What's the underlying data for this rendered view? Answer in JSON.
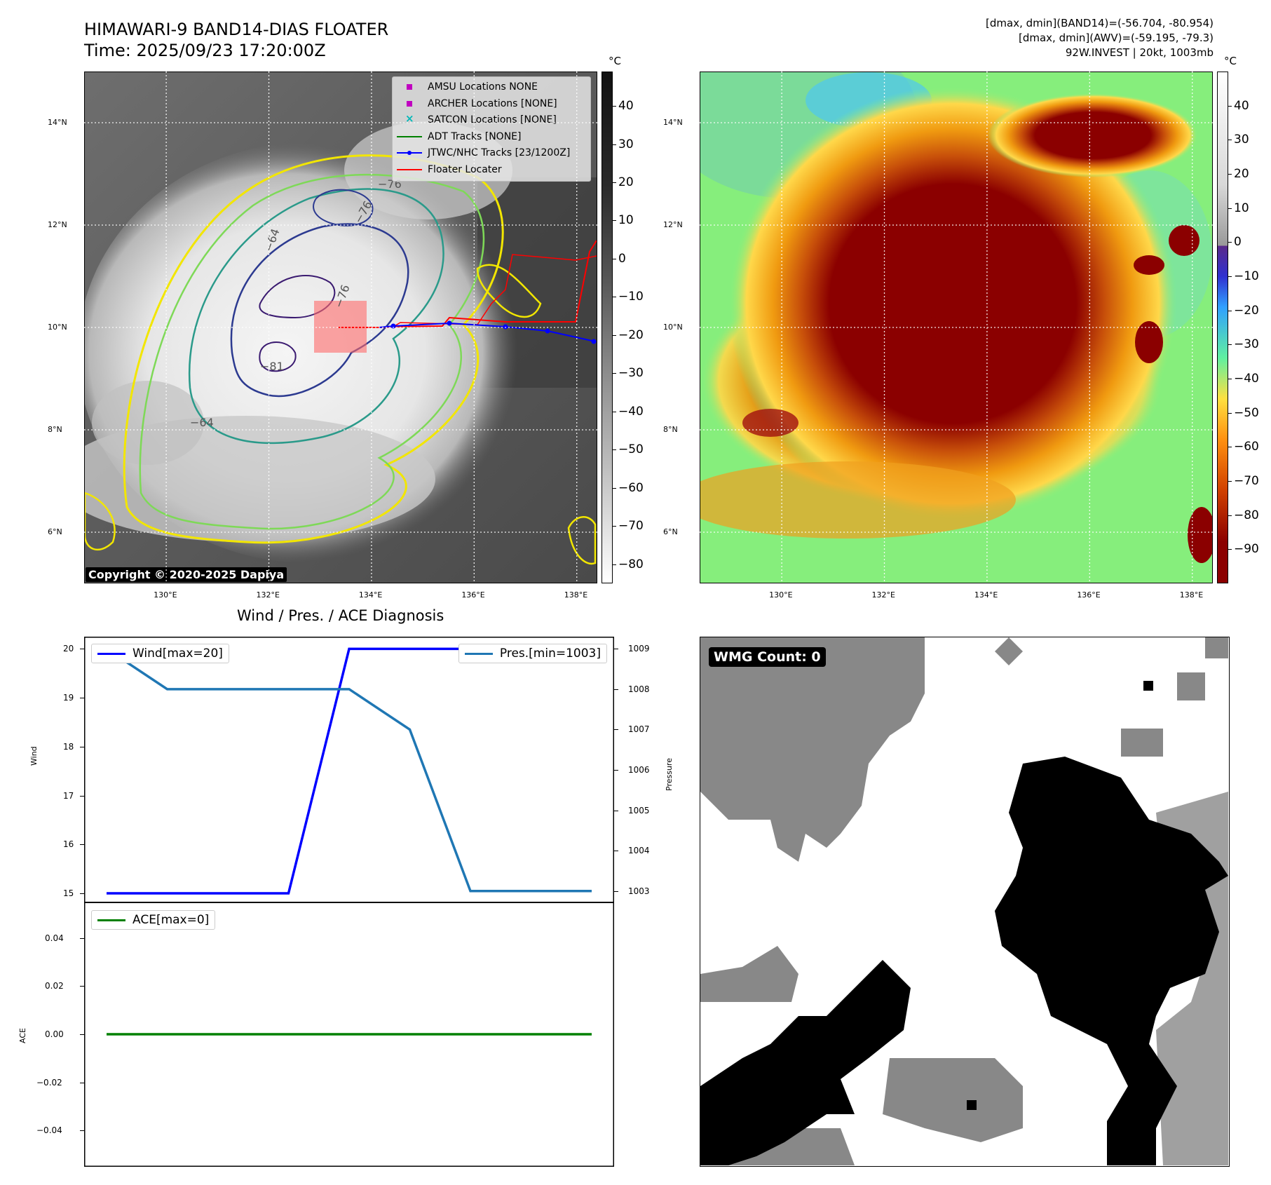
{
  "header": {
    "title_line1": "HIMAWARI-9 BAND14-DIAS FLOATER",
    "title_line2": "Time: 2025/09/23 17:20:00Z",
    "info_line1": "[dmax, dmin](BAND14)=(-56.704, -80.954)",
    "info_line2": "[dmax, dmin](AWV)=(-59.195, -79.3)",
    "info_line3": "92W.INVEST | 20kt, 1003mb"
  },
  "map_axes": {
    "lat_labels": [
      "14°N",
      "12°N",
      "10°N",
      "8°N",
      "6°N"
    ],
    "lat_values": [
      14,
      12,
      10,
      8,
      6
    ],
    "lon_labels": [
      "130°E",
      "132°E",
      "134°E",
      "136°E",
      "138°E"
    ],
    "lon_values": [
      130,
      132,
      134,
      136,
      138
    ],
    "lat_range": [
      5,
      15
    ],
    "lon_range": [
      128.4,
      138.4
    ]
  },
  "left_map": {
    "copyright": "Copyright © 2020-2025 Dapiya",
    "contour_labels": [
      "−76",
      "−76",
      "−64",
      "−81",
      "−76",
      "−64"
    ],
    "legend": [
      {
        "label": "AMSU Locations NONE",
        "color": "#c000c0",
        "marker": "square"
      },
      {
        "label": "ARCHER Locations [NONE]",
        "color": "#c000c0",
        "marker": "square"
      },
      {
        "label": "SATCON Locations [NONE]",
        "color": "#00b8b8",
        "marker": "x"
      },
      {
        "label": "ADT Tracks [NONE]",
        "color": "#008000",
        "marker": "line"
      },
      {
        "label": "JTWC/NHC Tracks [23/1200Z]",
        "color": "#0000ff",
        "marker": "line-dot"
      },
      {
        "label": "Floater Locater",
        "color": "#ff0000",
        "marker": "line"
      }
    ],
    "colorbar": {
      "unit": "°C",
      "ticks": [
        "40",
        "30",
        "20",
        "10",
        "0",
        "−10",
        "−20",
        "−30",
        "−40",
        "−50",
        "−60",
        "−70",
        "−80"
      ],
      "tick_values": [
        40,
        30,
        20,
        10,
        0,
        -10,
        -20,
        -30,
        -40,
        -50,
        -60,
        -70,
        -80
      ],
      "range": [
        -85,
        49
      ]
    }
  },
  "right_map": {
    "colorbar": {
      "unit": "°C",
      "ticks": [
        "40",
        "30",
        "20",
        "10",
        "0",
        "−10",
        "−20",
        "−30",
        "−40",
        "−50",
        "−60",
        "−70",
        "−80",
        "−90"
      ],
      "tick_values": [
        40,
        30,
        20,
        10,
        0,
        -10,
        -20,
        -30,
        -40,
        -50,
        -60,
        -70,
        -80,
        -90
      ],
      "range": [
        -100,
        50
      ]
    }
  },
  "diagnosis": {
    "title": "Wind / Pres. / ACE Diagnosis",
    "wind_legend": "Wind[max=20]",
    "pres_legend": "Pres.[min=1003]",
    "ace_legend": "ACE[max=0]",
    "wind_ylabel": "Wind",
    "pres_ylabel": "Pressure",
    "ace_ylabel": "ACE",
    "wind_ticks": [
      "20",
      "19",
      "18",
      "17",
      "16",
      "15"
    ],
    "pres_ticks": [
      "1009",
      "1008",
      "1007",
      "1006",
      "1005",
      "1004",
      "1003"
    ],
    "ace_ticks": [
      "0.04",
      "0.02",
      "0.00",
      "−0.02",
      "−0.04"
    ],
    "colors": {
      "wind": "#0000ff",
      "pres": "#1f77b4",
      "ace": "#008000"
    }
  },
  "wmg": {
    "label": "WMG Count: 0"
  },
  "chart_data": [
    {
      "type": "line",
      "title": "Wind / Pres. / ACE Diagnosis",
      "x": [
        0,
        1,
        2,
        3,
        4,
        5,
        6,
        7,
        8
      ],
      "series": [
        {
          "name": "Wind[max=20]",
          "axis": "left",
          "values": [
            15,
            15,
            15,
            15,
            20,
            20,
            20,
            20,
            20
          ]
        },
        {
          "name": "Pres.[min=1003]",
          "axis": "right",
          "values": [
            1009,
            1008,
            1008,
            1008,
            1008,
            1007,
            1003,
            1003,
            1003
          ]
        }
      ],
      "ylabel": "Wind",
      "ylim": [
        14.8,
        20.25
      ],
      "y2label": "Pressure",
      "y2lim": [
        1002.7,
        1009.3
      ],
      "grid": false
    },
    {
      "type": "line",
      "x": [
        0,
        1,
        2,
        3,
        4,
        5,
        6,
        7,
        8
      ],
      "series": [
        {
          "name": "ACE[max=0]",
          "values": [
            0,
            0,
            0,
            0,
            0,
            0,
            0,
            0,
            0
          ]
        }
      ],
      "ylabel": "ACE",
      "ylim": [
        -0.055,
        0.055
      ],
      "grid": false
    }
  ]
}
